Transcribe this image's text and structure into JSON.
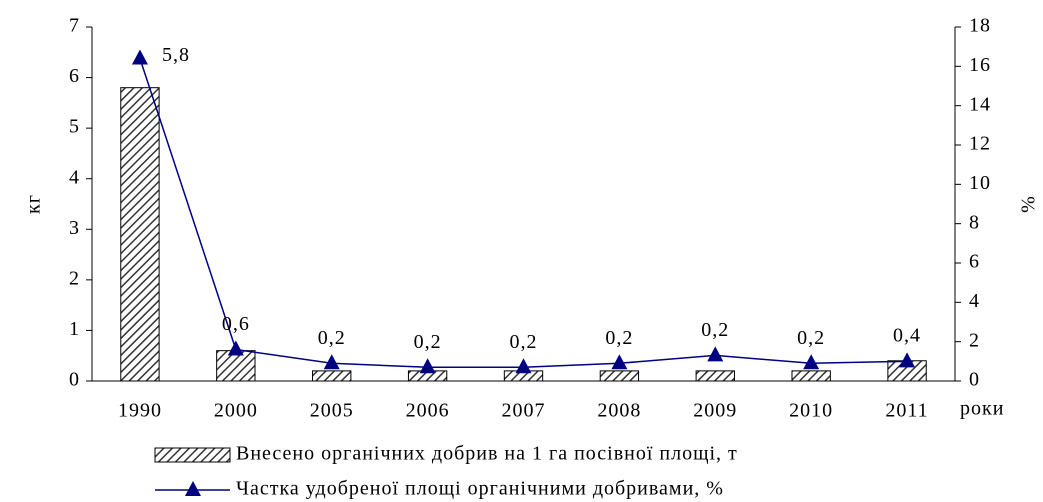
{
  "chart_data": {
    "type": "bar",
    "categories": [
      "1990",
      "2000",
      "2005",
      "2006",
      "2007",
      "2008",
      "2009",
      "2010",
      "2011"
    ],
    "series": [
      {
        "name": "Внесено органічних добрив на 1 га посівної площі, т",
        "color": "#333333",
        "values": [
          5.8,
          0.6,
          0.2,
          0.2,
          0.2,
          0.2,
          0.2,
          0.2,
          0.4
        ],
        "value_labels": [
          "5,8",
          "0,6",
          "0,2",
          "0,2",
          "0,2",
          "0,2",
          "0,2",
          "0,2",
          "0,4"
        ]
      },
      {
        "name": "Частка удобреної площі органічними добривами, %",
        "color": "#000080",
        "axis": "y2",
        "values": [
          16.4,
          1.6,
          0.9,
          0.7,
          0.7,
          0.9,
          1.3,
          0.9,
          1.0
        ]
      }
    ],
    "y_label": "кг",
    "y2_label": "%",
    "x_label": "роки",
    "ylim": [
      0,
      7
    ],
    "yticks": [
      0,
      1,
      2,
      3,
      4,
      5,
      6,
      7
    ],
    "y2lim": [
      0,
      18
    ],
    "y2ticks": [
      0,
      2,
      4,
      6,
      8,
      10,
      12,
      14,
      16,
      18
    ]
  }
}
